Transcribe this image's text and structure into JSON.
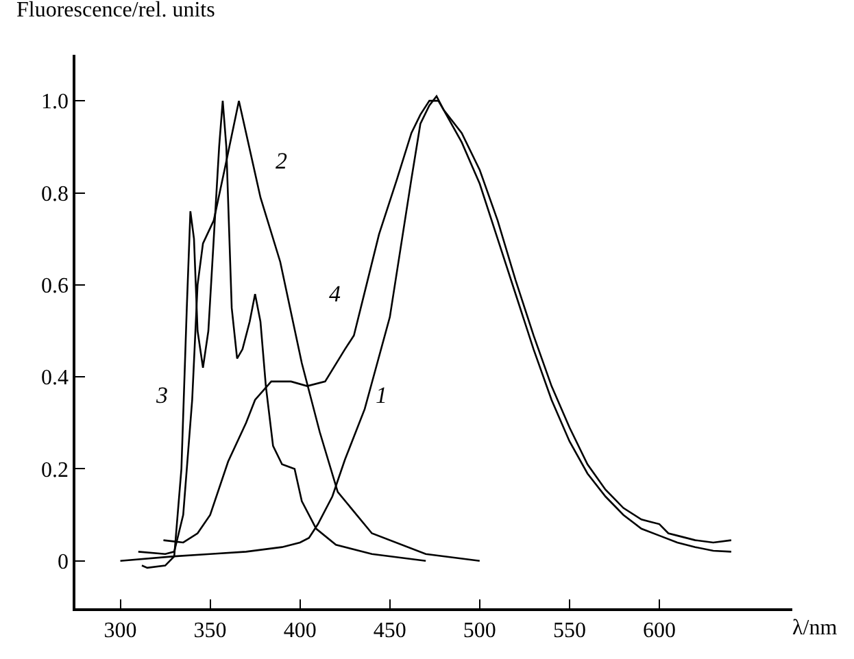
{
  "chart_data": {
    "type": "line",
    "ylabel": "Fluorescence/rel. units",
    "xlabel": "λ/nm",
    "xlim": [
      275,
      674
    ],
    "ylim": [
      -0.103,
      1.1
    ],
    "xticks": [
      300,
      350,
      400,
      450,
      500,
      550,
      600
    ],
    "yticks": [
      0,
      {
        "value": 0.2,
        "label": "0.2"
      },
      {
        "value": 0.4,
        "label": "0.4"
      },
      {
        "value": 0.6,
        "label": "0.6"
      },
      {
        "value": 0.8,
        "label": "0.8"
      },
      {
        "value": 1.0,
        "label": "1.0"
      }
    ],
    "legend": false,
    "marker": "none",
    "line_style": "solid",
    "series": [
      {
        "name": "1",
        "color": "#000000",
        "x": [
          300,
          330,
          350,
          370,
          390,
          400,
          405,
          410,
          418,
          425,
          436,
          443,
          450,
          456,
          462,
          467,
          472,
          476,
          480,
          490,
          500,
          510,
          520,
          530,
          540,
          550,
          560,
          570,
          580,
          590,
          600,
          610,
          620,
          630,
          640
        ],
        "values": [
          0.0,
          0.01,
          0.015,
          0.02,
          0.03,
          0.04,
          0.05,
          0.08,
          0.14,
          0.22,
          0.33,
          0.43,
          0.53,
          0.68,
          0.83,
          0.95,
          0.99,
          1.01,
          0.98,
          0.91,
          0.82,
          0.7,
          0.58,
          0.46,
          0.35,
          0.26,
          0.19,
          0.14,
          0.1,
          0.07,
          0.055,
          0.04,
          0.03,
          0.022,
          0.02
        ]
      },
      {
        "name": "2",
        "color": "#000000",
        "x": [
          310,
          325,
          330,
          335,
          340,
          343,
          346,
          352,
          358,
          366,
          378,
          389,
          401,
          411,
          421,
          440,
          470,
          500
        ],
        "values": [
          0.02,
          0.015,
          0.02,
          0.1,
          0.35,
          0.6,
          0.69,
          0.74,
          0.85,
          1.0,
          0.79,
          0.65,
          0.43,
          0.28,
          0.15,
          0.06,
          0.015,
          0.0
        ]
      },
      {
        "name": "3",
        "color": "#000000",
        "x": [
          312,
          315,
          325,
          330,
          334,
          337,
          339,
          341,
          343,
          346,
          349,
          352,
          355,
          357,
          359,
          362,
          365,
          368,
          372,
          375,
          378,
          381,
          385,
          390,
          397,
          401,
          409,
          420,
          440,
          470
        ],
        "values": [
          -0.01,
          -0.015,
          -0.01,
          0.01,
          0.2,
          0.55,
          0.76,
          0.7,
          0.5,
          0.42,
          0.5,
          0.7,
          0.9,
          1.0,
          0.9,
          0.55,
          0.44,
          0.46,
          0.52,
          0.58,
          0.52,
          0.38,
          0.25,
          0.21,
          0.2,
          0.13,
          0.07,
          0.035,
          0.015,
          0.0
        ]
      },
      {
        "name": "4",
        "color": "#000000",
        "x": [
          324,
          335,
          343,
          350,
          360,
          370,
          375,
          384,
          395,
          404,
          414,
          425,
          430,
          437,
          444,
          454,
          462,
          467,
          472,
          477,
          480,
          490,
          500,
          510,
          520,
          530,
          540,
          550,
          560,
          570,
          580,
          590,
          595,
          600,
          605,
          610,
          620,
          630,
          640
        ],
        "values": [
          0.045,
          0.04,
          0.06,
          0.1,
          0.216,
          0.3,
          0.35,
          0.39,
          0.39,
          0.38,
          0.39,
          0.46,
          0.49,
          0.6,
          0.71,
          0.83,
          0.93,
          0.97,
          1.0,
          1.0,
          0.98,
          0.93,
          0.85,
          0.74,
          0.61,
          0.49,
          0.38,
          0.29,
          0.21,
          0.155,
          0.115,
          0.09,
          0.085,
          0.08,
          0.06,
          0.055,
          0.045,
          0.04,
          0.045
        ]
      }
    ]
  }
}
